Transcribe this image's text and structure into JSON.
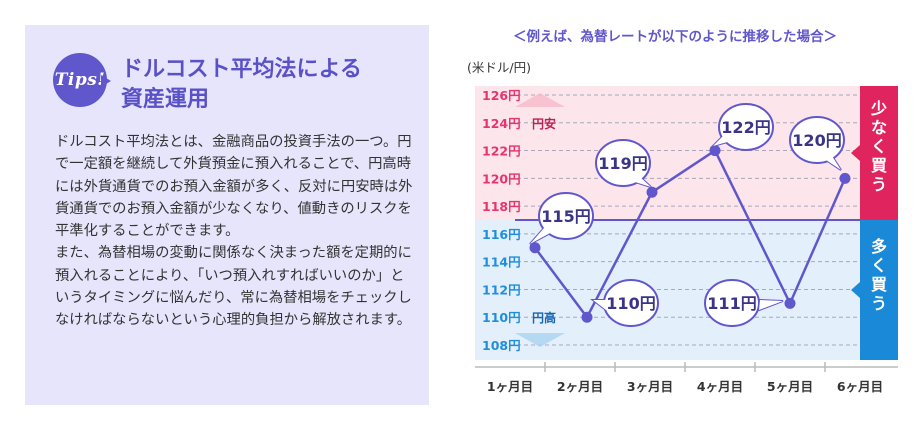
{
  "tips": {
    "badge": "Tips!",
    "title_line1": "ドルコスト平均法による",
    "title_line2": "資産運用",
    "paragraph1": "ドルコスト平均法とは、金融商品の投資手法の一つ。円で一定額を継続して外貨預金に預入れることで、円高時には外貨通貨でのお預入金額が多く、反対に円安時は外貨通貨でのお預入金額が少なくなり、値動きのリスクを平準化することができます。",
    "paragraph2": "また、為替相場の変動に関係なく決まった額を定期的に預入れることにより、「いつ預入れすればいいのか」というタイミングに悩んだり、常に為替相場をチェックしなければならないという心理的負担から解放されます。"
  },
  "chart_data": {
    "type": "line",
    "title": "＜例えば、為替レートが以下のように推移した場合＞",
    "ylabel": "(米ドル/円)",
    "x": [
      "1ヶ月目",
      "2ヶ月目",
      "3ヶ月目",
      "4ヶ月目",
      "5ヶ月目",
      "6ヶ月目"
    ],
    "values": [
      115,
      110,
      119,
      122,
      111,
      120
    ],
    "value_labels": [
      "115円",
      "110円",
      "119円",
      "122円",
      "111円",
      "120円"
    ],
    "yticks": [
      108,
      110,
      112,
      114,
      116,
      118,
      120,
      122,
      124,
      126
    ],
    "ytick_labels": [
      "108円",
      "110円",
      "112円",
      "114円",
      "116円",
      "118円",
      "120円",
      "122円",
      "124円",
      "126円"
    ],
    "ylim": [
      108,
      126
    ],
    "threshold": 117,
    "annotations": {
      "yen_weak": "円安",
      "yen_strong": "円高"
    },
    "side_labels": {
      "upper": "少なく買う",
      "lower": "多く買う"
    },
    "grid": true,
    "colors": {
      "line": "#6157cd",
      "upper_zone": "#fde5ec",
      "lower_zone": "#e3effb",
      "upper_tick": "#e8336c",
      "lower_tick": "#1f8fdc",
      "upper_side": "#e0245e",
      "lower_side": "#1a8ad8"
    }
  }
}
